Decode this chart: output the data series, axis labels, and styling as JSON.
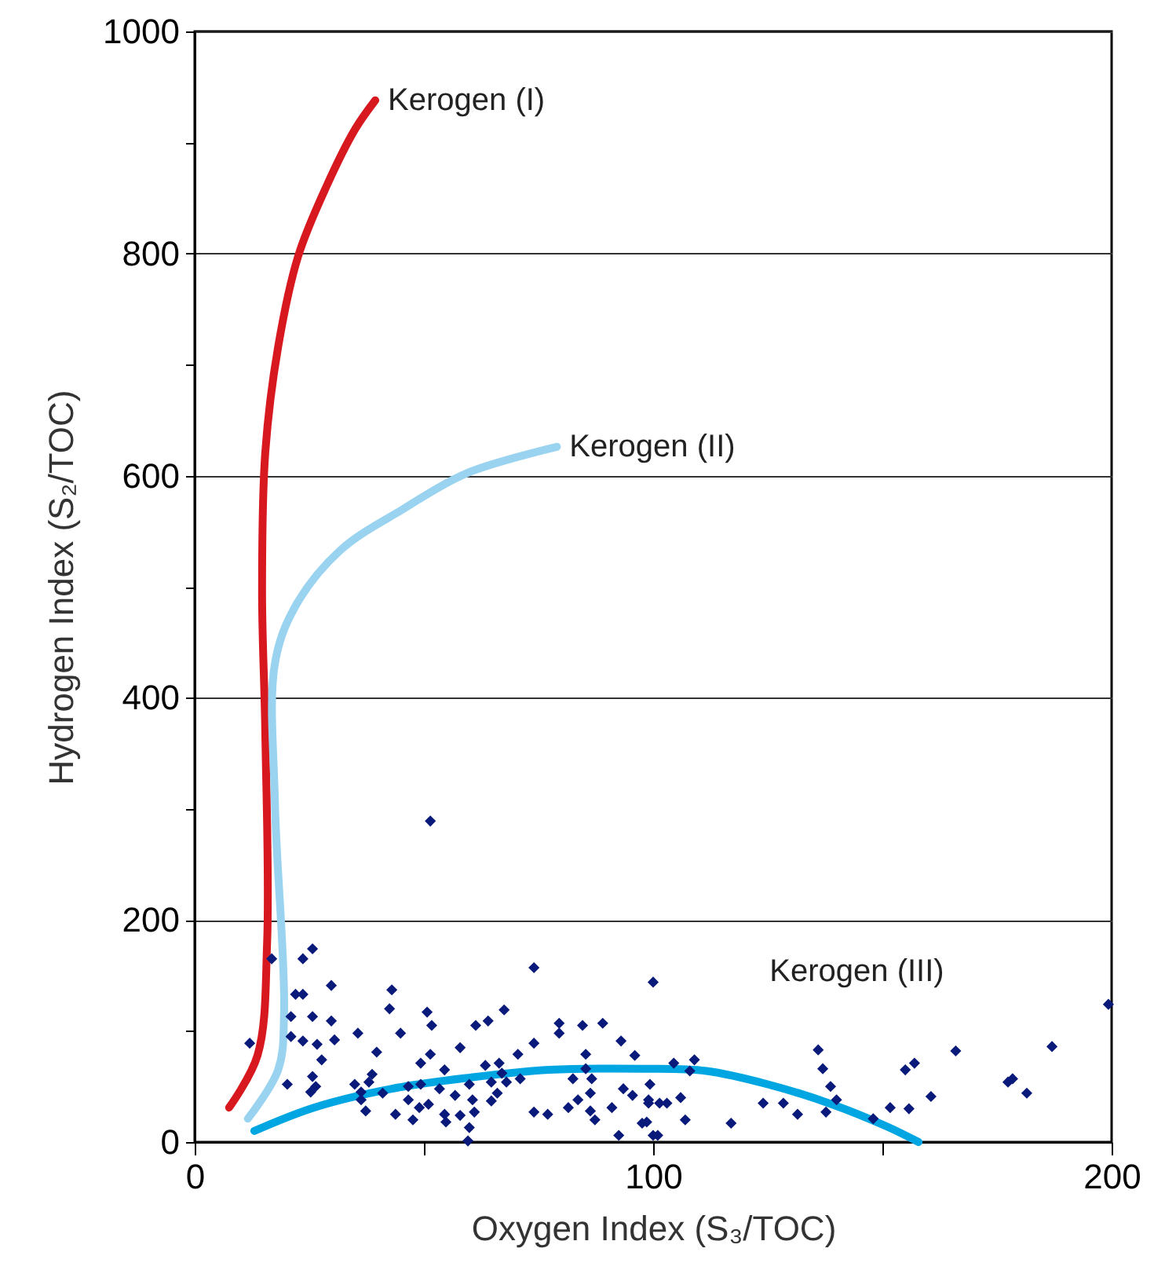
{
  "chart_data": {
    "type": "scatter",
    "xlabel": "Oxygen Index (S₃/TOC)",
    "ylabel": "Hydrogen Index (S₂/TOC)",
    "xlim": [
      0,
      200
    ],
    "ylim": [
      0,
      1000
    ],
    "xticks": [
      0,
      {
        "value": 50,
        "label": null
      },
      100,
      {
        "value": 150,
        "label": null
      },
      200
    ],
    "yticks": [
      0,
      {
        "value": 100,
        "label": null
      },
      200,
      {
        "value": 300,
        "label": null
      },
      400,
      {
        "value": 500,
        "label": null
      },
      600,
      {
        "value": 700,
        "label": null
      },
      800,
      {
        "value": 900,
        "label": null
      },
      1000
    ],
    "grid": "y",
    "marker": "diamond",
    "series": [
      {
        "type": "line",
        "name": "Kerogen (I)",
        "marker": "none",
        "color": "#d7191f",
        "x": [
          7.5,
          13.7,
          15.8,
          15.4,
          14.7,
          15.4,
          18.2,
          22.6,
          28.8,
          35,
          39.4
        ],
        "values": [
          31,
          78,
          180,
          369,
          495,
          621,
          716,
          798,
          861,
          912,
          938
        ]
      },
      {
        "type": "line",
        "name": "Kerogen (II)",
        "marker": "none",
        "color": "#99d3f0",
        "x": [
          11.6,
          18.2,
          19.5,
          17.5,
          17.5,
          21.9,
          31.8,
          45.5,
          59.2,
          79
        ],
        "values": [
          21,
          65,
          116,
          306,
          431,
          482,
          533,
          570,
          602,
          626
        ]
      },
      {
        "type": "line",
        "name": "Kerogen (III)",
        "marker": "none",
        "color": "#00a6e2",
        "x": [
          13,
          26,
          43,
          60,
          77.4,
          98,
          111.6,
          125,
          139,
          151,
          157.9
        ],
        "values": [
          10,
          31,
          48,
          58,
          65,
          66,
          64,
          52,
          34,
          14,
          0
        ]
      },
      {
        "color": "#0a1a7a",
        "x": [
          25.7,
          23.6,
          16.8,
          74,
          100,
          29.8,
          43,
          22,
          23.6,
          42.5,
          50.7,
          67.5,
          21,
          25.7,
          51.7,
          61.3,
          64,
          29.8,
          79.5,
          84.6,
          89,
          79.5,
          21,
          30.5,
          35.6,
          44.9,
          12,
          23.6,
          26.7,
          74,
          93,
          57.9,
          39.7,
          51.4,
          70.5,
          85.3,
          96,
          27.7,
          49.3,
          63.4,
          66.4,
          54.5,
          85.3,
          38.7,
          67,
          25.7,
          20.2,
          34.9,
          38,
          64.7,
          68,
          71,
          59.9,
          26.4,
          82.5,
          86.6,
          99.3,
          36.3,
          25.3,
          46.6,
          49.3,
          41,
          53.4,
          56.8,
          66,
          83.6,
          86.3,
          93.5,
          95.5,
          99,
          36.3,
          46.6,
          51,
          60.6,
          64.7,
          37.3,
          43.8,
          47.6,
          49,
          54.5,
          57.9,
          61,
          74,
          77,
          81.5,
          86.3,
          91,
          54.8,
          59.9,
          87.3,
          97.6,
          59.6,
          92.5,
          100,
          51.4,
          199.3,
          136,
          166,
          187,
          137,
          155,
          157,
          177.4,
          178.4,
          181.5,
          160.6,
          138.7,
          140,
          137.7,
          151.7,
          155.8,
          148,
          124,
          128.4,
          131.5,
          117,
          104.5,
          109,
          108,
          99,
          101.4,
          103,
          106,
          98.6,
          101,
          107
        ],
        "values": [
          174,
          165,
          165,
          157,
          144,
          141,
          137,
          133,
          133,
          120,
          117,
          119,
          113,
          113,
          105,
          105,
          109,
          109,
          107,
          105,
          107,
          98,
          95,
          92,
          98,
          98,
          89,
          91,
          88,
          89,
          91,
          85,
          81,
          79,
          79,
          79,
          78,
          74,
          71,
          69,
          71,
          65,
          66,
          61,
          62,
          59,
          52,
          52,
          54,
          54,
          54,
          57,
          52,
          50,
          57,
          57,
          52,
          45,
          45,
          50,
          52,
          44,
          48,
          42,
          44,
          38,
          44,
          48,
          42,
          38,
          38,
          38,
          34,
          38,
          37,
          28,
          25,
          20,
          31,
          25,
          24,
          27,
          27,
          25,
          31,
          28,
          31,
          18,
          13,
          20,
          17,
          1,
          6,
          6,
          289,
          124,
          83,
          82,
          86,
          66,
          65,
          71,
          54,
          57,
          44,
          41,
          50,
          38,
          27,
          31,
          30,
          21,
          35,
          35,
          25,
          17,
          71,
          74,
          64,
          35,
          35,
          35,
          40,
          18,
          6,
          20
        ]
      }
    ]
  }
}
